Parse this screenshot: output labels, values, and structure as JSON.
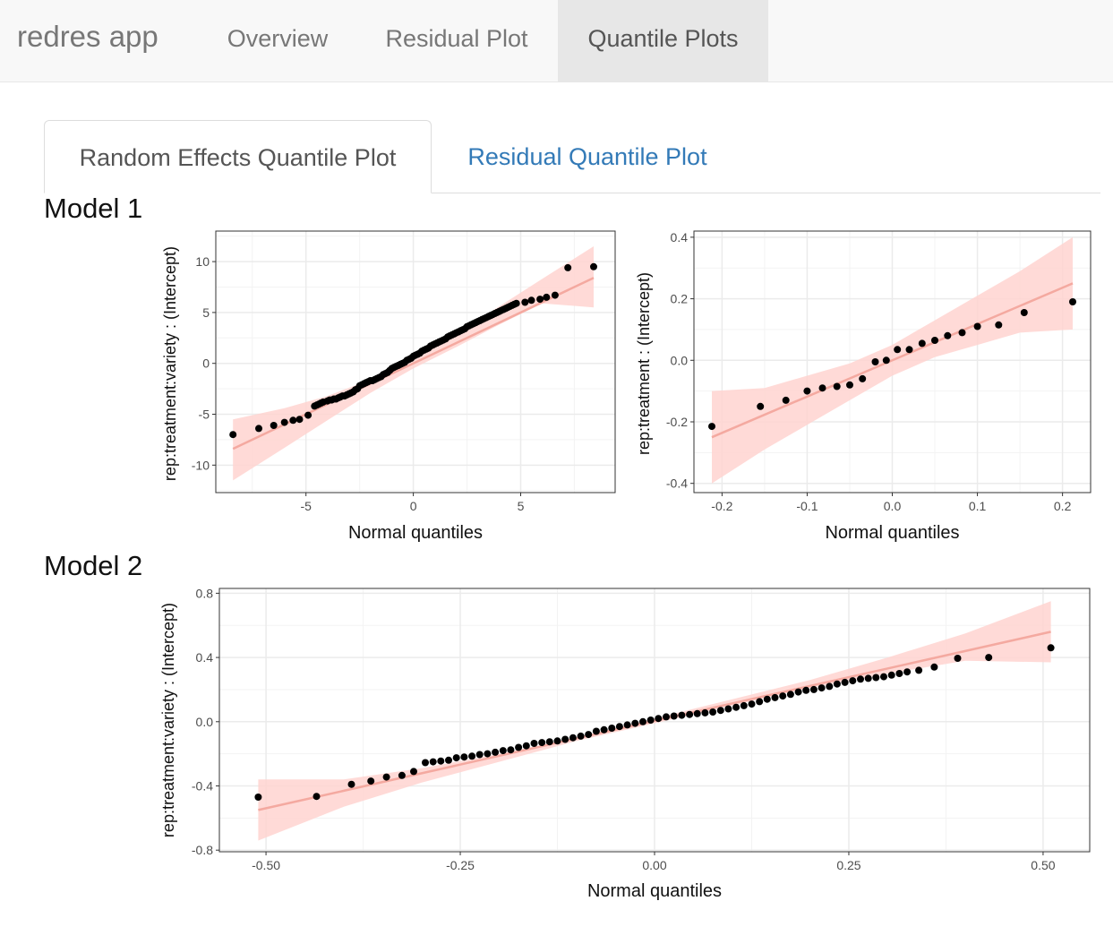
{
  "navbar": {
    "brand": "redres app",
    "items": [
      {
        "label": "Overview",
        "active": false
      },
      {
        "label": "Residual Plot",
        "active": false
      },
      {
        "label": "Quantile Plots",
        "active": true
      }
    ]
  },
  "tabs": [
    {
      "label": "Random Effects Quantile Plot",
      "active": true
    },
    {
      "label": "Residual Quantile Plot",
      "active": false
    }
  ],
  "colors": {
    "accent_link": "#337ab7",
    "fit_line": "#f4a9a0",
    "band_fill": "#ffd4d0",
    "points": "#000000",
    "grid": "#ebebeb"
  },
  "models": [
    {
      "heading": "Model 1"
    },
    {
      "heading": "Model 2"
    }
  ],
  "chart_data": [
    {
      "type": "scatter",
      "model": "Model 1",
      "title": "",
      "xlabel": "Normal quantiles",
      "ylabel": "rep:treatment:variety :  (Intercept)",
      "xlim": [
        -9.2,
        9.4
      ],
      "ylim": [
        -12.7,
        13.0
      ],
      "xticks": [
        -5,
        0,
        5
      ],
      "xtick_labels": [
        "-5",
        "0",
        "5"
      ],
      "yticks": [
        -10,
        -5,
        0,
        5,
        10
      ],
      "ytick_labels": [
        "-10",
        "-5",
        "0",
        "5",
        "10"
      ],
      "fit_line": {
        "x": [
          -8.4,
          8.4
        ],
        "y": [
          -8.4,
          8.4
        ]
      },
      "band": {
        "x": [
          -8.4,
          -6,
          -4,
          -2,
          0,
          2,
          4,
          6,
          8.4
        ],
        "lower": [
          -11.5,
          -8.3,
          -5.6,
          -2.9,
          -0.5,
          1.6,
          3.8,
          5.9,
          5.5
        ],
        "upper": [
          -5.5,
          -4.4,
          -3.2,
          -1.6,
          0.5,
          2.9,
          5.6,
          8.3,
          11.5
        ]
      },
      "points": {
        "x": [
          -8.4,
          -7.2,
          -6.5,
          -6.0,
          -5.6,
          -5.3,
          -4.9,
          -4.6,
          -4.5,
          -4.4,
          -4.3,
          -4.2,
          -4.0,
          -3.9,
          -3.8,
          -3.7,
          -3.6,
          -3.5,
          -3.4,
          -3.3,
          -3.2,
          -3.1,
          -3.0,
          -2.9,
          -2.8,
          -2.7,
          -2.6,
          -2.5,
          -2.4,
          -2.3,
          -2.2,
          -2.1,
          -2.0,
          -1.9,
          -1.8,
          -1.7,
          -1.6,
          -1.5,
          -1.4,
          -1.3,
          -1.2,
          -1.1,
          -1.0,
          -0.9,
          -0.8,
          -0.7,
          -0.6,
          -0.5,
          -0.4,
          -0.3,
          -0.2,
          -0.1,
          0.0,
          0.1,
          0.2,
          0.3,
          0.4,
          0.5,
          0.6,
          0.7,
          0.8,
          0.9,
          1.0,
          1.1,
          1.2,
          1.3,
          1.4,
          1.5,
          1.6,
          1.7,
          1.8,
          1.9,
          2.0,
          2.1,
          2.2,
          2.3,
          2.4,
          2.5,
          2.6,
          2.7,
          2.8,
          2.9,
          3.0,
          3.1,
          3.2,
          3.3,
          3.4,
          3.5,
          3.6,
          3.7,
          3.8,
          3.9,
          4.0,
          4.1,
          4.2,
          4.3,
          4.4,
          4.5,
          4.6,
          4.7,
          4.8,
          5.2,
          5.5,
          5.9,
          6.2,
          6.6,
          7.2,
          8.4
        ],
        "y": [
          -7.0,
          -6.4,
          -6.1,
          -5.8,
          -5.6,
          -5.5,
          -5.1,
          -4.2,
          -4.1,
          -4.0,
          -3.9,
          -3.8,
          -3.7,
          -3.6,
          -3.6,
          -3.5,
          -3.5,
          -3.4,
          -3.3,
          -3.2,
          -3.2,
          -3.1,
          -3.0,
          -2.9,
          -2.8,
          -2.6,
          -2.5,
          -2.2,
          -2.1,
          -2.0,
          -1.9,
          -1.8,
          -1.7,
          -1.7,
          -1.6,
          -1.5,
          -1.4,
          -1.3,
          -1.1,
          -1.0,
          -0.9,
          -0.7,
          -0.5,
          -0.4,
          -0.3,
          -0.2,
          -0.1,
          0.0,
          0.1,
          0.3,
          0.4,
          0.5,
          0.7,
          0.8,
          0.9,
          1.0,
          1.2,
          1.3,
          1.4,
          1.5,
          1.7,
          1.8,
          1.9,
          2.0,
          2.1,
          2.2,
          2.3,
          2.4,
          2.6,
          2.7,
          2.8,
          2.9,
          3.0,
          3.1,
          3.2,
          3.3,
          3.4,
          3.6,
          3.7,
          3.8,
          3.9,
          4.0,
          4.1,
          4.2,
          4.3,
          4.4,
          4.5,
          4.6,
          4.7,
          4.8,
          4.9,
          5.0,
          5.1,
          5.2,
          5.3,
          5.4,
          5.5,
          5.6,
          5.7,
          5.8,
          5.9,
          6.0,
          6.2,
          6.3,
          6.5,
          6.7,
          9.4,
          9.5
        ]
      }
    },
    {
      "type": "scatter",
      "model": "Model 1",
      "title": "",
      "xlabel": "Normal quantiles",
      "ylabel": "rep:treatment :  (Intercept)",
      "xlim": [
        -0.233,
        0.233
      ],
      "ylim": [
        -0.43,
        0.42
      ],
      "xticks": [
        -0.2,
        -0.1,
        0.0,
        0.1,
        0.2
      ],
      "xtick_labels": [
        "-0.2",
        "-0.1",
        "0.0",
        "0.1",
        "0.2"
      ],
      "yticks": [
        -0.4,
        -0.2,
        0.0,
        0.2,
        0.4
      ],
      "ytick_labels": [
        "-0.4",
        "-0.2",
        "0.0",
        "0.2",
        "0.4"
      ],
      "fit_line": {
        "x": [
          -0.212,
          0.212
        ],
        "y": [
          -0.25,
          0.25
        ]
      },
      "band": {
        "x": [
          -0.212,
          -0.15,
          -0.1,
          -0.05,
          0.0,
          0.05,
          0.1,
          0.15,
          0.212
        ],
        "lower": [
          -0.4,
          -0.29,
          -0.21,
          -0.13,
          -0.05,
          0.01,
          0.05,
          0.09,
          0.1
        ],
        "upper": [
          -0.1,
          -0.09,
          -0.05,
          -0.01,
          0.05,
          0.13,
          0.21,
          0.29,
          0.4
        ]
      },
      "points": {
        "x": [
          -0.212,
          -0.155,
          -0.125,
          -0.1,
          -0.082,
          -0.065,
          -0.05,
          -0.035,
          -0.02,
          -0.007,
          0.006,
          0.02,
          0.035,
          0.05,
          0.065,
          0.082,
          0.1,
          0.125,
          0.155,
          0.212
        ],
        "y": [
          -0.215,
          -0.15,
          -0.13,
          -0.1,
          -0.09,
          -0.085,
          -0.08,
          -0.06,
          -0.005,
          0.0,
          0.035,
          0.035,
          0.055,
          0.065,
          0.08,
          0.09,
          0.11,
          0.115,
          0.155,
          0.19
        ]
      }
    },
    {
      "type": "scatter",
      "model": "Model 2",
      "title": "",
      "xlabel": "Normal quantiles",
      "ylabel": "rep:treatment:variety :  (Intercept)",
      "xlim": [
        -0.56,
        0.56
      ],
      "ylim": [
        -0.81,
        0.83
      ],
      "xticks": [
        -0.5,
        -0.25,
        0.0,
        0.25,
        0.5
      ],
      "xtick_labels": [
        "-0.50",
        "-0.25",
        "0.00",
        "0.25",
        "0.50"
      ],
      "yticks": [
        -0.8,
        -0.4,
        0.0,
        0.4,
        0.8
      ],
      "ytick_labels": [
        "-0.8",
        "-0.4",
        "0.0",
        "0.4",
        "0.8"
      ],
      "fit_line": {
        "x": [
          -0.51,
          0.51
        ],
        "y": [
          -0.55,
          0.56
        ]
      },
      "band": {
        "x": [
          -0.51,
          -0.4,
          -0.3,
          -0.2,
          -0.1,
          0.0,
          0.1,
          0.2,
          0.3,
          0.4,
          0.51
        ],
        "lower": [
          -0.74,
          -0.53,
          -0.38,
          -0.25,
          -0.12,
          -0.01,
          0.1,
          0.21,
          0.3,
          0.38,
          0.37
        ],
        "upper": [
          -0.36,
          -0.36,
          -0.29,
          -0.2,
          -0.1,
          0.02,
          0.14,
          0.26,
          0.4,
          0.55,
          0.75
        ]
      },
      "points": {
        "x": [
          -0.51,
          -0.435,
          -0.39,
          -0.365,
          -0.345,
          -0.325,
          -0.31,
          -0.295,
          -0.285,
          -0.275,
          -0.265,
          -0.255,
          -0.245,
          -0.235,
          -0.225,
          -0.215,
          -0.205,
          -0.195,
          -0.185,
          -0.175,
          -0.165,
          -0.155,
          -0.145,
          -0.135,
          -0.125,
          -0.115,
          -0.105,
          -0.095,
          -0.085,
          -0.075,
          -0.065,
          -0.055,
          -0.045,
          -0.035,
          -0.025,
          -0.015,
          -0.005,
          0.005,
          0.015,
          0.025,
          0.035,
          0.045,
          0.055,
          0.065,
          0.075,
          0.085,
          0.095,
          0.105,
          0.115,
          0.125,
          0.135,
          0.145,
          0.155,
          0.165,
          0.175,
          0.185,
          0.195,
          0.205,
          0.215,
          0.225,
          0.235,
          0.245,
          0.255,
          0.265,
          0.275,
          0.285,
          0.295,
          0.305,
          0.315,
          0.325,
          0.34,
          0.36,
          0.39,
          0.43,
          0.51
        ],
        "y": [
          -0.47,
          -0.465,
          -0.39,
          -0.37,
          -0.345,
          -0.335,
          -0.31,
          -0.255,
          -0.25,
          -0.245,
          -0.24,
          -0.225,
          -0.22,
          -0.215,
          -0.205,
          -0.2,
          -0.19,
          -0.18,
          -0.175,
          -0.16,
          -0.15,
          -0.135,
          -0.13,
          -0.125,
          -0.12,
          -0.11,
          -0.1,
          -0.09,
          -0.08,
          -0.06,
          -0.05,
          -0.04,
          -0.03,
          -0.02,
          -0.01,
          0.0,
          0.01,
          0.02,
          0.03,
          0.035,
          0.04,
          0.045,
          0.05,
          0.055,
          0.06,
          0.07,
          0.08,
          0.09,
          0.1,
          0.11,
          0.125,
          0.14,
          0.15,
          0.16,
          0.17,
          0.185,
          0.195,
          0.2,
          0.21,
          0.22,
          0.235,
          0.245,
          0.255,
          0.265,
          0.27,
          0.275,
          0.28,
          0.29,
          0.3,
          0.31,
          0.32,
          0.34,
          0.395,
          0.4,
          0.46
        ]
      }
    }
  ]
}
